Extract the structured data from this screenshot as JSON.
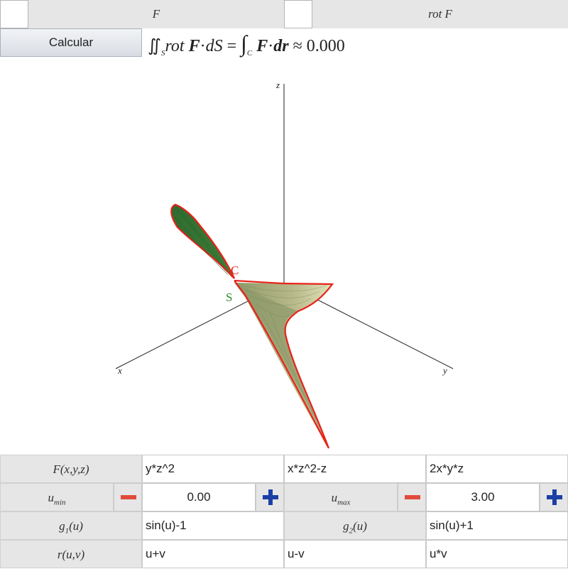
{
  "header": {
    "f_label": "F",
    "rotf_label": "rot F"
  },
  "toolbar": {
    "calc_label": "Calcular"
  },
  "formula": {
    "integral_sign": "∬",
    "sub_s": "S",
    "rot": "rot",
    "bold_f": "F",
    "dot": "·",
    "ds": "dS",
    "equals": "=",
    "line_integral_sign": "∫",
    "sub_c": "C",
    "dr": "dr",
    "approx": "≈",
    "value": "0.000"
  },
  "plot": {
    "axis_x": "x",
    "axis_y": "y",
    "axis_z": "z",
    "curve_label": "C",
    "surface_label": "S",
    "colors": {
      "curve": "#e8231a",
      "surface_dark": "#2f6b2f",
      "surface_light": "#d8d9a8",
      "surface_mid": "#8f9968",
      "label_c": "#e8231a",
      "label_s": "#2a8a2a"
    }
  },
  "fields": {
    "f_label": "F(x,y,z)",
    "f_components": [
      "y*z^2",
      "x*z^2-z",
      "2x*y*z"
    ],
    "umin_label": "u",
    "umin_sub": "min",
    "umin_value": "0.00",
    "umax_label": "u",
    "umax_sub": "max",
    "umax_value": "3.00",
    "g1_label": "g",
    "g1_sub": "1",
    "g1_arg": "(u)",
    "g1_value": "sin(u)-1",
    "g2_label": "g",
    "g2_sub": "2",
    "g2_arg": "(u)",
    "g2_value": "sin(u)+1",
    "r_label": "r(u,v)",
    "r_components": [
      "u+v",
      "u-v",
      "u*v"
    ]
  }
}
